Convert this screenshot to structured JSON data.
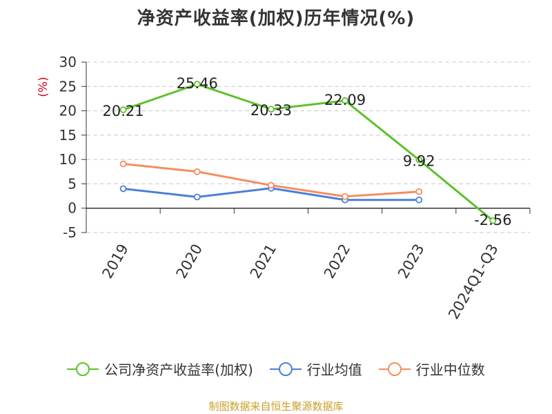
{
  "chart_data": {
    "type": "line",
    "title": "净资产收益率(加权)历年情况(%)",
    "ylabel": "(%)",
    "xlabel": "",
    "categories": [
      "2019",
      "2020",
      "2021",
      "2022",
      "2023",
      "2024Q1-Q3"
    ],
    "ylim": [
      -5,
      30
    ],
    "yticks": [
      30,
      25,
      20,
      15,
      10,
      5,
      0,
      -5
    ],
    "grid": true,
    "legend_position": "bottom",
    "series": [
      {
        "name": "公司净资产收益率(加权)",
        "color": "#5dc12b",
        "values": [
          20.21,
          25.46,
          20.33,
          22.09,
          9.92,
          -2.56
        ],
        "labels": [
          "20.21",
          "25.46",
          "20.33",
          "22.09",
          "9.92",
          "-2.56"
        ]
      },
      {
        "name": "行业均值",
        "color": "#4a7fd9",
        "values": [
          4.0,
          2.3,
          4.1,
          1.7,
          1.7,
          null
        ]
      },
      {
        "name": "行业中位数",
        "color": "#f58d5e",
        "values": [
          9.1,
          7.5,
          4.7,
          2.4,
          3.4,
          null
        ]
      }
    ]
  },
  "source": "制图数据来自恒生聚源数据库"
}
